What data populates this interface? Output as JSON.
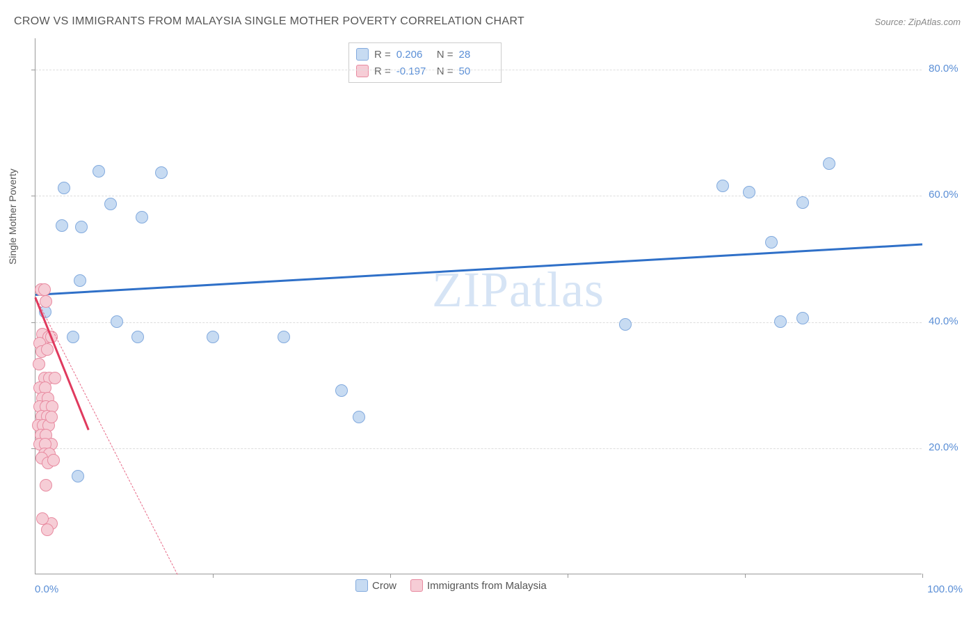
{
  "title": "CROW VS IMMIGRANTS FROM MALAYSIA SINGLE MOTHER POVERTY CORRELATION CHART",
  "source": "Source: ZipAtlas.com",
  "ylabel": "Single Mother Poverty",
  "watermark": "ZIPatlas",
  "chart": {
    "type": "scatter",
    "background_color": "#ffffff",
    "grid_color": "#dddddd",
    "axis_color": "#999999",
    "tick_label_color": "#5b8fd6",
    "label_color": "#555555",
    "label_fontsize": 14,
    "tick_fontsize": 15,
    "xlim": [
      0,
      100
    ],
    "ylim": [
      0,
      85
    ],
    "y_ticks": [
      20,
      40,
      60,
      80
    ],
    "y_tick_labels": [
      "20.0%",
      "40.0%",
      "60.0%",
      "80.0%"
    ],
    "x_ticks": [
      20,
      40,
      60,
      80,
      100
    ],
    "x_corner_left": "0.0%",
    "x_corner_right": "100.0%",
    "marker_radius": 9,
    "marker_stroke_width": 1.5,
    "series": [
      {
        "id": "crow",
        "label": "Crow",
        "color_fill": "#c7dbf2",
        "color_stroke": "#82aade",
        "R_label": "R = ",
        "R": "0.206",
        "N_label": "N = ",
        "N": "28",
        "trend": {
          "x1": 0,
          "y1": 44.5,
          "x2": 100,
          "y2": 52.5,
          "color": "#2f70c8",
          "width": 2.5,
          "dash": false
        },
        "points": [
          [
            3.2,
            61.2
          ],
          [
            7.1,
            63.8
          ],
          [
            14.2,
            63.6
          ],
          [
            3.0,
            55.2
          ],
          [
            5.2,
            55.0
          ],
          [
            8.5,
            58.6
          ],
          [
            12.0,
            56.5
          ],
          [
            1.1,
            41.5
          ],
          [
            5.0,
            46.5
          ],
          [
            9.2,
            40.0
          ],
          [
            4.2,
            37.5
          ],
          [
            4.8,
            15.5
          ],
          [
            20.0,
            37.5
          ],
          [
            28.0,
            37.5
          ],
          [
            34.5,
            29.0
          ],
          [
            36.5,
            24.8
          ],
          [
            66.5,
            39.5
          ],
          [
            77.5,
            61.5
          ],
          [
            80.5,
            60.5
          ],
          [
            83.0,
            52.5
          ],
          [
            84.0,
            40.0
          ],
          [
            86.5,
            58.8
          ],
          [
            86.5,
            40.5
          ],
          [
            89.5,
            65.0
          ],
          [
            11.5,
            37.5
          ]
        ]
      },
      {
        "id": "malaysia",
        "label": "Immigrants from Malaysia",
        "color_fill": "#f6cdd6",
        "color_stroke": "#e88aa0",
        "R_label": "R = ",
        "R": "-0.197",
        "N_label": "N = ",
        "N": "50",
        "trend": {
          "x1": 0,
          "y1": 44.0,
          "x2": 16,
          "y2": 0,
          "color": "#e86a88",
          "width": 1.5,
          "dash": true
        },
        "trend_solid": {
          "x1": 0,
          "y1": 44.0,
          "x2": 6,
          "y2": 23.0,
          "color": "#e03a5e",
          "width": 2.5,
          "dash": false
        },
        "points": [
          [
            0.6,
            45.0
          ],
          [
            1.0,
            45.0
          ],
          [
            1.2,
            43.2
          ],
          [
            0.8,
            38.0
          ],
          [
            1.5,
            37.5
          ],
          [
            0.5,
            36.5
          ],
          [
            1.8,
            37.5
          ],
          [
            0.7,
            35.2
          ],
          [
            1.3,
            35.5
          ],
          [
            0.4,
            33.2
          ],
          [
            1.0,
            31.0
          ],
          [
            1.6,
            31.0
          ],
          [
            2.2,
            31.0
          ],
          [
            0.5,
            29.5
          ],
          [
            1.1,
            29.5
          ],
          [
            0.8,
            27.8
          ],
          [
            1.4,
            27.8
          ],
          [
            0.5,
            26.5
          ],
          [
            1.2,
            26.5
          ],
          [
            1.9,
            26.5
          ],
          [
            0.7,
            25.0
          ],
          [
            1.3,
            25.0
          ],
          [
            0.3,
            23.5
          ],
          [
            0.9,
            23.5
          ],
          [
            1.5,
            23.5
          ],
          [
            1.8,
            24.8
          ],
          [
            0.6,
            22.0
          ],
          [
            1.2,
            22.0
          ],
          [
            0.5,
            20.5
          ],
          [
            1.8,
            20.5
          ],
          [
            1.1,
            20.5
          ],
          [
            1.0,
            19.0
          ],
          [
            1.6,
            19.0
          ],
          [
            0.7,
            18.3
          ],
          [
            1.4,
            17.5
          ],
          [
            2.0,
            18.0
          ],
          [
            1.2,
            14.0
          ],
          [
            1.8,
            8.0
          ],
          [
            0.8,
            8.7
          ],
          [
            1.3,
            7.0
          ]
        ]
      }
    ]
  }
}
